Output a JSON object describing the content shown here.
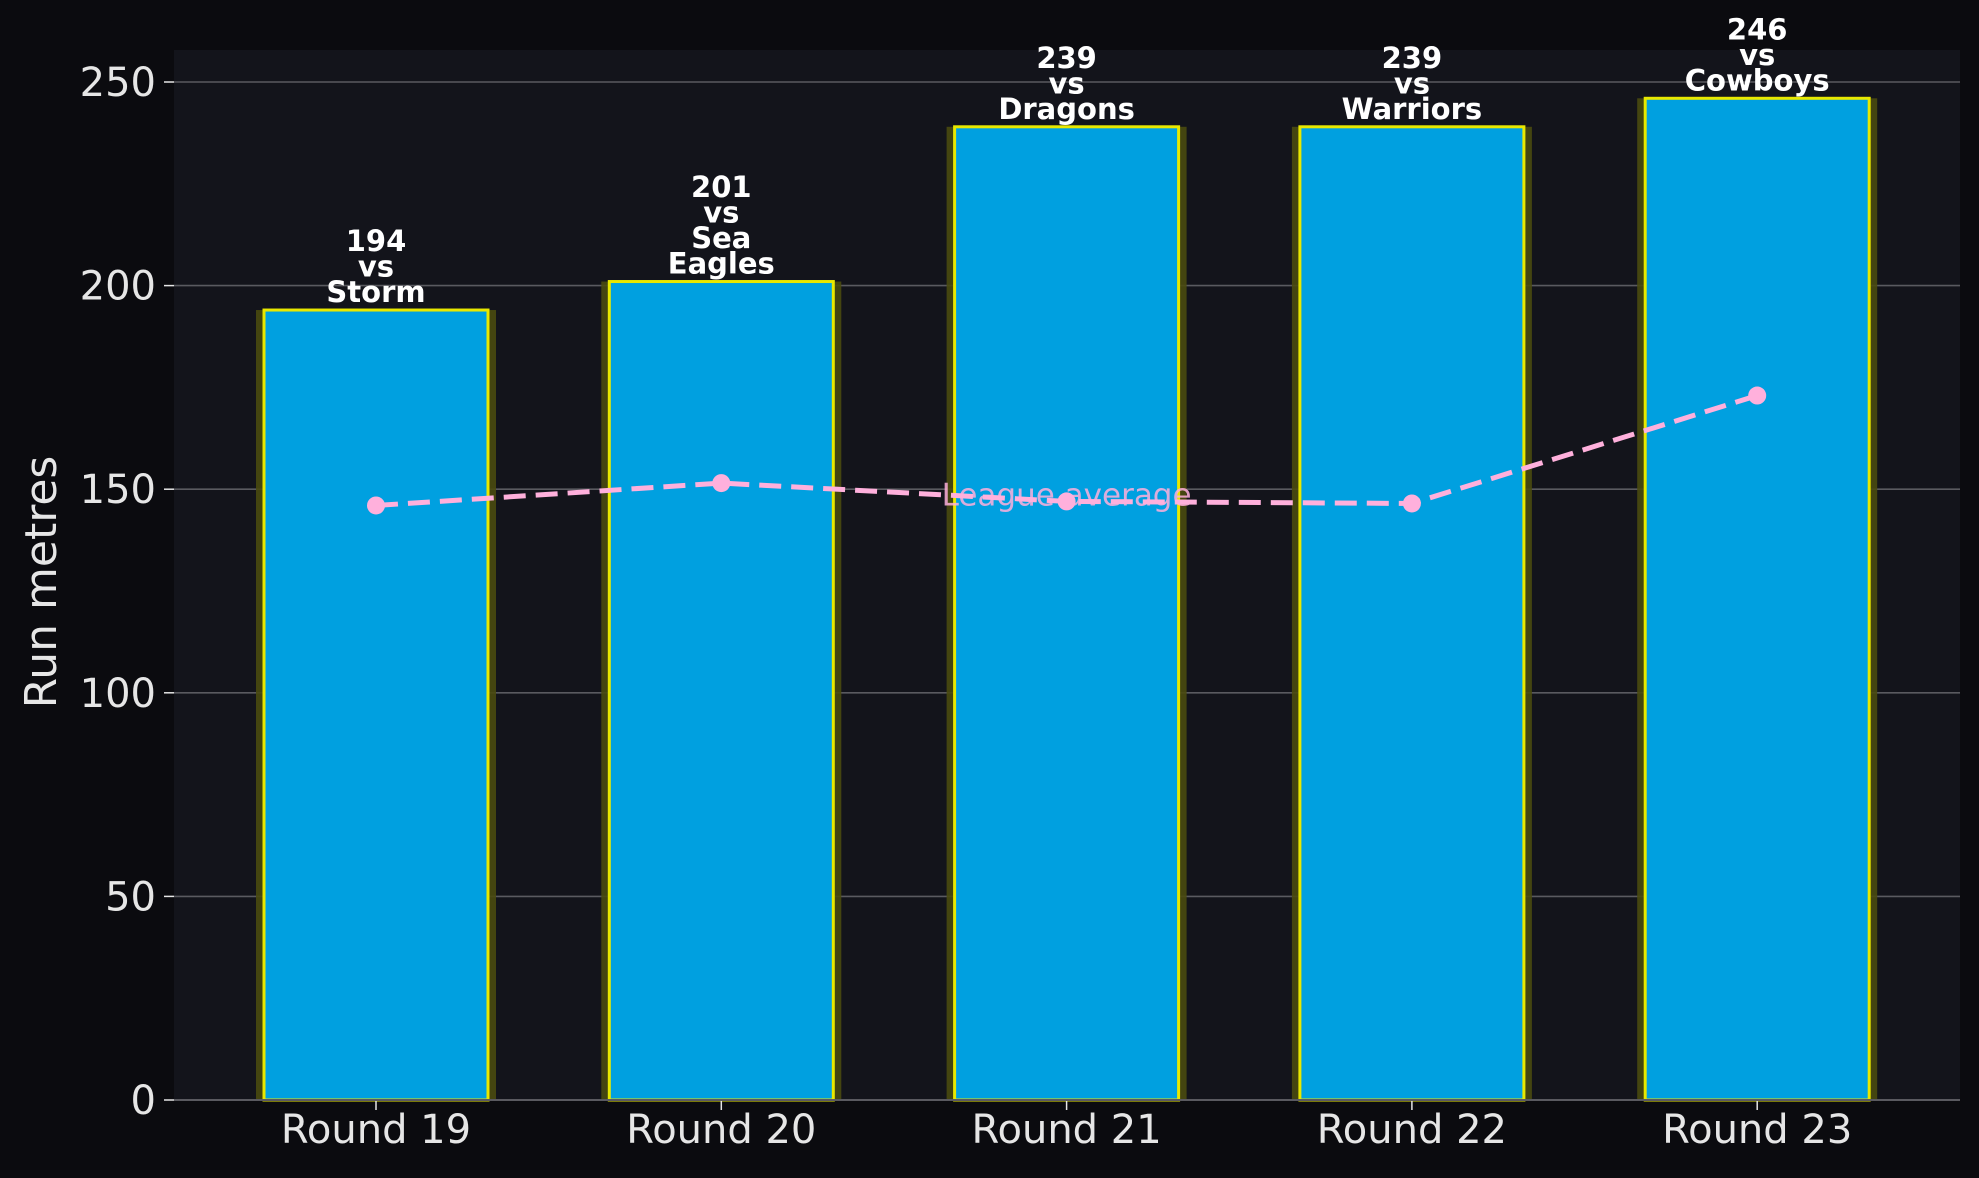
{
  "chart_data": {
    "type": "bar",
    "categories": [
      "Round 19",
      "Round 20",
      "Round 21",
      "Round 22",
      "Round 23"
    ],
    "values": [
      194,
      201,
      239,
      239,
      246
    ],
    "opponents": [
      [
        "Storm"
      ],
      [
        "Sea",
        "Eagles"
      ],
      [
        "Dragons"
      ],
      [
        "Warriors"
      ],
      [
        "Cowboys"
      ]
    ],
    "vs_label": "vs",
    "ylabel": "Run metres",
    "xlabel": "",
    "ylim": [
      0,
      258
    ],
    "yticks": [
      0,
      50,
      100,
      150,
      200,
      250
    ],
    "grid": true,
    "line_series": {
      "label": "League average",
      "values": [
        146,
        151.5,
        147,
        146.5,
        173
      ]
    },
    "colors": {
      "background": "#0b0b0f",
      "plot_background": "#13141b",
      "bar_fill": "#00a0e0",
      "bar_edge": "#e8e800",
      "bar_glow": "#4a4a10",
      "line": "#ffb0dc",
      "text": "#e6e6e6",
      "label_text": "#ffffff",
      "grid": "#5a5a60"
    }
  }
}
